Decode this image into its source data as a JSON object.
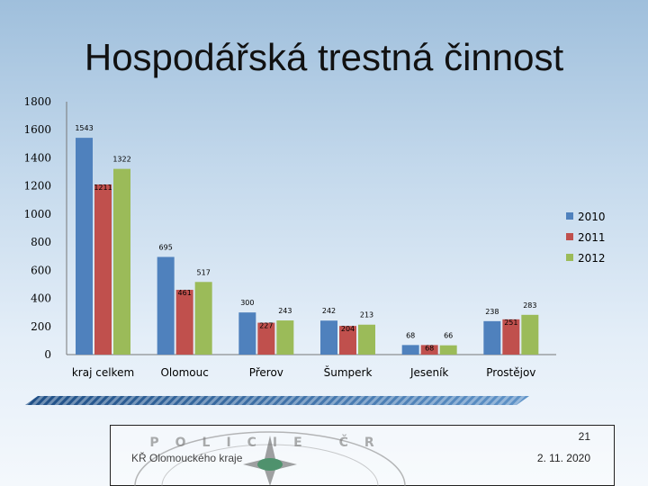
{
  "slide": {
    "title": "Hospodářská trestná činnost",
    "footer_left": "KŘ Olomouckého kraje",
    "page_number": "21",
    "date": "2. 11. 2020",
    "emblem_text": "POLICIE ČR"
  },
  "chart_data": {
    "type": "bar",
    "categories": [
      "kraj celkem",
      "Olomouc",
      "Přerov",
      "Šumperk",
      "Jeseník",
      "Prostějov"
    ],
    "series": [
      {
        "name": "2010",
        "color": "#4f81bd",
        "values": [
          1543,
          695,
          300,
          242,
          68,
          238
        ]
      },
      {
        "name": "2011",
        "color": "#c0504d",
        "values": [
          1211,
          461,
          227,
          204,
          68,
          251
        ]
      },
      {
        "name": "2012",
        "color": "#9bbb59",
        "values": [
          1322,
          517,
          243,
          213,
          66,
          283
        ]
      }
    ],
    "yticks": [
      0,
      200,
      400,
      600,
      800,
      1000,
      1200,
      1400,
      1600,
      1800
    ],
    "ylim": [
      0,
      1800
    ],
    "grid": false,
    "legend_position": "right"
  }
}
